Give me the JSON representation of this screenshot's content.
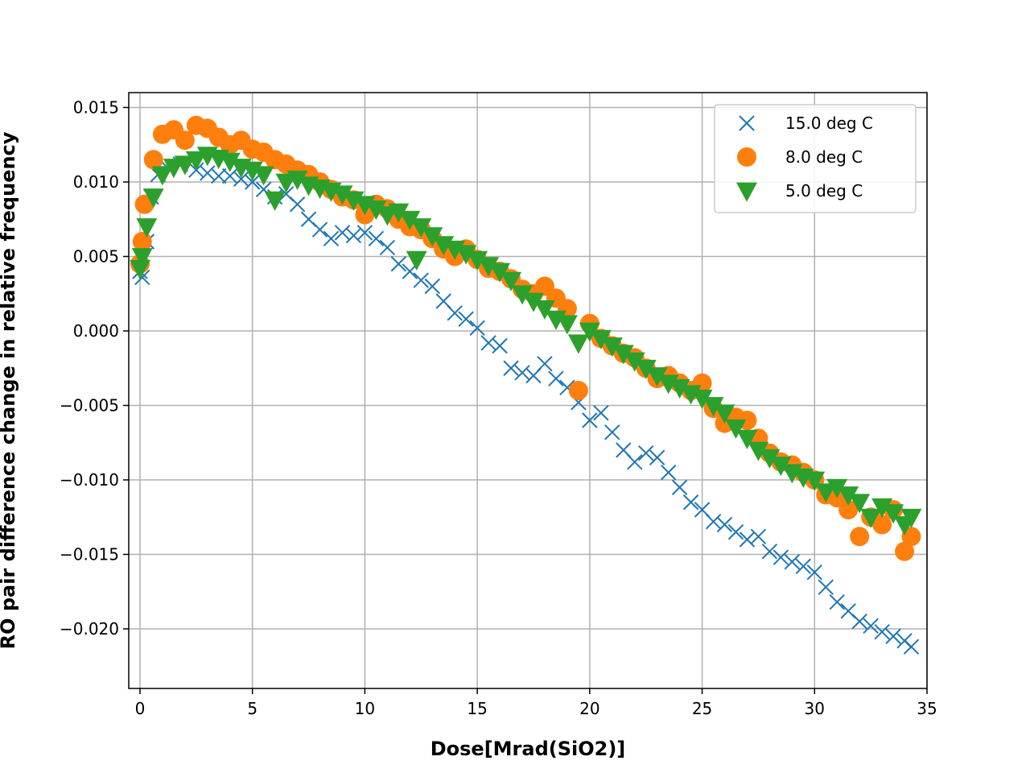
{
  "chart_data": {
    "type": "scatter",
    "title": "",
    "xlabel": "Dose[Mrad(SiO2)]",
    "ylabel": "RO pair difference change in relative frequency",
    "xlim": [
      -0.5,
      35
    ],
    "ylim": [
      -0.024,
      0.016
    ],
    "xticks": [
      0,
      5,
      10,
      15,
      20,
      25,
      30,
      35
    ],
    "yticks": [
      0.015,
      0.01,
      0.005,
      0.0,
      -0.005,
      -0.01,
      -0.015,
      -0.02
    ],
    "xtick_labels": [
      "0",
      "5",
      "10",
      "15",
      "20",
      "25",
      "30",
      "35"
    ],
    "ytick_labels": [
      "0.015",
      "0.010",
      "0.005",
      "0.000",
      "−0.005",
      "−0.010",
      "−0.015",
      "−0.020"
    ],
    "grid": true,
    "legend_position": "top-right",
    "series": [
      {
        "name": "15.0 deg C",
        "marker": "x",
        "color": "#1f77b4",
        "points": [
          [
            0.0,
            0.004
          ],
          [
            0.1,
            0.0036
          ],
          [
            0.3,
            0.006
          ],
          [
            0.5,
            0.009
          ],
          [
            0.8,
            0.0105
          ],
          [
            1.2,
            0.011
          ],
          [
            1.8,
            0.0112
          ],
          [
            2.5,
            0.0108
          ],
          [
            3.0,
            0.0106
          ],
          [
            3.5,
            0.0104
          ],
          [
            4.0,
            0.0104
          ],
          [
            4.5,
            0.0102
          ],
          [
            5.0,
            0.01
          ],
          [
            5.5,
            0.0095
          ],
          [
            6.0,
            0.009
          ],
          [
            6.5,
            0.0092
          ],
          [
            7.0,
            0.0085
          ],
          [
            7.5,
            0.0075
          ],
          [
            8.0,
            0.0068
          ],
          [
            8.5,
            0.0062
          ],
          [
            9.0,
            0.0066
          ],
          [
            9.5,
            0.0064
          ],
          [
            10.0,
            0.0066
          ],
          [
            10.5,
            0.0062
          ],
          [
            11.0,
            0.0056
          ],
          [
            11.5,
            0.0045
          ],
          [
            12.0,
            0.004
          ],
          [
            12.5,
            0.0034
          ],
          [
            13.0,
            0.003
          ],
          [
            13.5,
            0.002
          ],
          [
            14.0,
            0.0012
          ],
          [
            14.5,
            0.0008
          ],
          [
            15.0,
            0.0002
          ],
          [
            15.5,
            -0.0008
          ],
          [
            16.0,
            -0.001
          ],
          [
            16.5,
            -0.0025
          ],
          [
            17.0,
            -0.0028
          ],
          [
            17.5,
            -0.003
          ],
          [
            18.0,
            -0.0022
          ],
          [
            18.5,
            -0.0032
          ],
          [
            19.0,
            -0.0038
          ],
          [
            19.5,
            -0.0048
          ],
          [
            20.0,
            -0.006
          ],
          [
            20.5,
            -0.0055
          ],
          [
            21.0,
            -0.0068
          ],
          [
            21.5,
            -0.008
          ],
          [
            22.0,
            -0.0088
          ],
          [
            22.5,
            -0.0082
          ],
          [
            23.0,
            -0.0085
          ],
          [
            23.5,
            -0.0095
          ],
          [
            24.0,
            -0.0105
          ],
          [
            24.5,
            -0.0115
          ],
          [
            25.0,
            -0.012
          ],
          [
            25.5,
            -0.0128
          ],
          [
            26.0,
            -0.013
          ],
          [
            26.5,
            -0.0135
          ],
          [
            27.0,
            -0.014
          ],
          [
            27.5,
            -0.0138
          ],
          [
            28.0,
            -0.0148
          ],
          [
            28.5,
            -0.0152
          ],
          [
            29.0,
            -0.0155
          ],
          [
            29.5,
            -0.0158
          ],
          [
            30.0,
            -0.0162
          ],
          [
            30.5,
            -0.0172
          ],
          [
            31.0,
            -0.0182
          ],
          [
            31.5,
            -0.0188
          ],
          [
            32.0,
            -0.0195
          ],
          [
            32.5,
            -0.0198
          ],
          [
            33.0,
            -0.0202
          ],
          [
            33.5,
            -0.0205
          ],
          [
            34.0,
            -0.0208
          ],
          [
            34.3,
            -0.0212
          ]
        ]
      },
      {
        "name": "8.0 deg C",
        "marker": "o",
        "color": "#ff7f0e",
        "points": [
          [
            0.0,
            0.0045
          ],
          [
            0.1,
            0.006
          ],
          [
            0.2,
            0.0085
          ],
          [
            0.6,
            0.0115
          ],
          [
            1.0,
            0.0132
          ],
          [
            1.5,
            0.0135
          ],
          [
            2.0,
            0.0128
          ],
          [
            2.5,
            0.0138
          ],
          [
            3.0,
            0.0136
          ],
          [
            3.5,
            0.013
          ],
          [
            4.0,
            0.0125
          ],
          [
            4.5,
            0.0128
          ],
          [
            5.0,
            0.0122
          ],
          [
            5.5,
            0.012
          ],
          [
            6.0,
            0.0115
          ],
          [
            6.5,
            0.0112
          ],
          [
            7.0,
            0.0108
          ],
          [
            7.5,
            0.0105
          ],
          [
            8.0,
            0.01
          ],
          [
            8.5,
            0.0095
          ],
          [
            9.0,
            0.009
          ],
          [
            9.5,
            0.0088
          ],
          [
            10.0,
            0.0078
          ],
          [
            10.5,
            0.0085
          ],
          [
            11.0,
            0.0082
          ],
          [
            11.5,
            0.0075
          ],
          [
            12.0,
            0.007
          ],
          [
            12.5,
            0.0068
          ],
          [
            13.0,
            0.0062
          ],
          [
            13.5,
            0.0055
          ],
          [
            14.0,
            0.005
          ],
          [
            14.5,
            0.0055
          ],
          [
            15.0,
            0.0048
          ],
          [
            15.5,
            0.0042
          ],
          [
            16.0,
            0.004
          ],
          [
            16.5,
            0.0035
          ],
          [
            17.0,
            0.0028
          ],
          [
            17.5,
            0.0025
          ],
          [
            18.0,
            0.003
          ],
          [
            18.5,
            0.0022
          ],
          [
            19.0,
            0.0015
          ],
          [
            19.5,
            -0.004
          ],
          [
            20.0,
            0.0005
          ],
          [
            20.5,
            -0.0005
          ],
          [
            21.0,
            -0.001
          ],
          [
            21.5,
            -0.0015
          ],
          [
            22.0,
            -0.0018
          ],
          [
            22.5,
            -0.0025
          ],
          [
            23.0,
            -0.0032
          ],
          [
            23.5,
            -0.003
          ],
          [
            24.0,
            -0.0035
          ],
          [
            24.5,
            -0.004
          ],
          [
            25.0,
            -0.0035
          ],
          [
            25.5,
            -0.0052
          ],
          [
            26.0,
            -0.0062
          ],
          [
            26.5,
            -0.0058
          ],
          [
            27.0,
            -0.006
          ],
          [
            27.5,
            -0.0072
          ],
          [
            28.0,
            -0.0082
          ],
          [
            28.5,
            -0.0088
          ],
          [
            29.0,
            -0.009
          ],
          [
            29.5,
            -0.0095
          ],
          [
            30.0,
            -0.01
          ],
          [
            30.5,
            -0.011
          ],
          [
            31.0,
            -0.0112
          ],
          [
            31.5,
            -0.012
          ],
          [
            32.0,
            -0.0138
          ],
          [
            32.5,
            -0.0125
          ],
          [
            33.0,
            -0.013
          ],
          [
            33.5,
            -0.012
          ],
          [
            34.0,
            -0.0148
          ],
          [
            34.3,
            -0.0138
          ]
        ]
      },
      {
        "name": "5.0 deg C",
        "marker": "v",
        "color": "#2ca02c",
        "points": [
          [
            0.0,
            0.0042
          ],
          [
            0.1,
            0.005
          ],
          [
            0.3,
            0.007
          ],
          [
            0.6,
            0.009
          ],
          [
            1.0,
            0.0105
          ],
          [
            1.5,
            0.011
          ],
          [
            2.0,
            0.0112
          ],
          [
            2.5,
            0.0115
          ],
          [
            3.0,
            0.0118
          ],
          [
            3.5,
            0.0116
          ],
          [
            4.0,
            0.0114
          ],
          [
            4.5,
            0.011
          ],
          [
            5.0,
            0.0108
          ],
          [
            5.5,
            0.0105
          ],
          [
            6.0,
            0.0088
          ],
          [
            6.5,
            0.01
          ],
          [
            7.0,
            0.0102
          ],
          [
            7.5,
            0.0098
          ],
          [
            8.0,
            0.0096
          ],
          [
            8.5,
            0.0094
          ],
          [
            9.0,
            0.0092
          ],
          [
            9.5,
            0.0088
          ],
          [
            10.0,
            0.0085
          ],
          [
            10.5,
            0.0082
          ],
          [
            11.0,
            0.0078
          ],
          [
            11.5,
            0.008
          ],
          [
            12.0,
            0.0075
          ],
          [
            12.3,
            0.0048
          ],
          [
            12.5,
            0.007
          ],
          [
            13.0,
            0.0064
          ],
          [
            13.5,
            0.0058
          ],
          [
            14.0,
            0.0055
          ],
          [
            14.5,
            0.0052
          ],
          [
            15.0,
            0.0048
          ],
          [
            15.5,
            0.0044
          ],
          [
            16.0,
            0.004
          ],
          [
            16.5,
            0.0034
          ],
          [
            17.0,
            0.0025
          ],
          [
            17.5,
            0.002
          ],
          [
            18.0,
            0.0015
          ],
          [
            18.5,
            0.0008
          ],
          [
            19.0,
            0.0005
          ],
          [
            19.5,
            -0.0008
          ],
          [
            20.0,
            0.0
          ],
          [
            20.5,
            -0.0005
          ],
          [
            21.0,
            -0.001
          ],
          [
            21.5,
            -0.0015
          ],
          [
            22.0,
            -0.002
          ],
          [
            22.5,
            -0.0025
          ],
          [
            23.0,
            -0.003
          ],
          [
            23.5,
            -0.0035
          ],
          [
            24.0,
            -0.0038
          ],
          [
            24.5,
            -0.0042
          ],
          [
            25.0,
            -0.0045
          ],
          [
            25.5,
            -0.005
          ],
          [
            26.0,
            -0.0055
          ],
          [
            26.5,
            -0.0065
          ],
          [
            27.0,
            -0.0072
          ],
          [
            27.5,
            -0.008
          ],
          [
            28.0,
            -0.0085
          ],
          [
            28.5,
            -0.009
          ],
          [
            29.0,
            -0.0095
          ],
          [
            29.5,
            -0.0098
          ],
          [
            30.0,
            -0.01
          ],
          [
            30.5,
            -0.0108
          ],
          [
            31.0,
            -0.0105
          ],
          [
            31.5,
            -0.011
          ],
          [
            32.0,
            -0.0115
          ],
          [
            32.5,
            -0.0125
          ],
          [
            33.0,
            -0.0118
          ],
          [
            33.5,
            -0.0122
          ],
          [
            34.0,
            -0.013
          ],
          [
            34.3,
            -0.0125
          ]
        ]
      }
    ]
  }
}
